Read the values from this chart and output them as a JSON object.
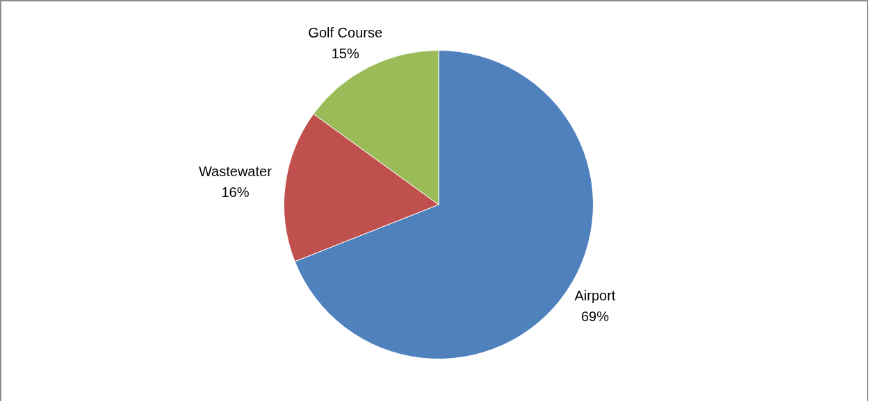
{
  "chart_data": {
    "type": "pie",
    "categories": [
      "Airport",
      "Wastewater",
      "Golf Course"
    ],
    "values": [
      69,
      16,
      15
    ],
    "colors": [
      "#4f81bd",
      "#c0504d",
      "#9bbb59"
    ],
    "value_labels": [
      "69%",
      "16%",
      "15%"
    ],
    "legend": false
  }
}
